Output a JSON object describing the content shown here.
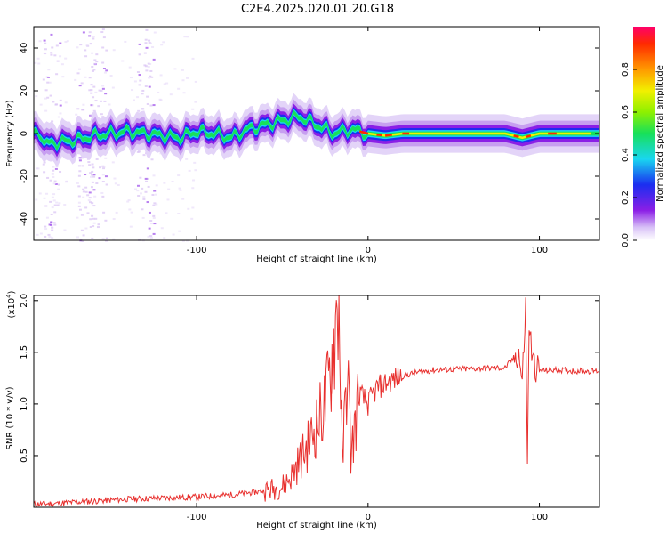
{
  "title": "C2E4.2025.020.01.20.G18",
  "chart_data": [
    {
      "type": "heatmap",
      "xlabel": "Height of straight line (km)",
      "ylabel": "Frequency (Hz)",
      "xlim": [
        -195,
        135
      ],
      "ylim": [
        -50,
        50
      ],
      "xticks": [
        -100,
        0,
        100
      ],
      "xtick_labels": [
        "-100",
        "0",
        "100"
      ],
      "yticks": [
        -40,
        -20,
        0,
        20,
        40
      ],
      "ytick_labels": [
        "-40",
        "-20",
        "0",
        "20",
        "40"
      ],
      "ridge_x": [
        -190,
        -180,
        -170,
        -160,
        -150,
        -140,
        -130,
        -120,
        -110,
        -100,
        -90,
        -80,
        -70,
        -60,
        -50,
        -40,
        -30,
        -20,
        -10,
        0,
        10,
        20,
        40,
        60,
        80,
        90,
        100,
        120,
        135
      ],
      "ridge_y": [
        -5,
        -4,
        -3,
        -1,
        0,
        1,
        0,
        -1,
        -2,
        1,
        0,
        -2,
        2,
        4,
        6,
        8,
        4,
        0,
        2,
        0,
        -1,
        0,
        0,
        0,
        0,
        -2,
        0,
        0,
        0
      ],
      "colorbar": {
        "label": "Normalized spectral amplitude",
        "range": [
          0,
          1
        ],
        "ticks": [
          0.0,
          0.2,
          0.4,
          0.6,
          0.8
        ],
        "tick_labels": [
          "0.0",
          "0.2",
          "0.4",
          "0.6",
          "0.8"
        ]
      }
    },
    {
      "type": "line",
      "xlabel": "Height of straight line (km)",
      "ylabel": "SNR (10 * v/v)",
      "scale_label": "(x10",
      "scale_exp": "4",
      "scale_close": ")",
      "xlim": [
        -195,
        135
      ],
      "ylim": [
        0,
        2.05
      ],
      "xticks": [
        -100,
        0,
        100
      ],
      "xtick_labels": [
        "-100",
        "0",
        "100"
      ],
      "yticks": [
        0.5,
        1.0,
        1.5,
        2.0
      ],
      "ytick_labels": [
        "0.5",
        "1.0",
        "1.5",
        "2.0"
      ],
      "series": [
        {
          "color": "#e8302e",
          "x": [
            -195,
            -180,
            -160,
            -140,
            -120,
            -100,
            -80,
            -70,
            -60,
            -50,
            -45,
            -40,
            -35,
            -30,
            -25,
            -22,
            -20,
            -17,
            -15,
            -12,
            -10,
            -5,
            0,
            5,
            10,
            20,
            30,
            40,
            60,
            80,
            88,
            90,
            92,
            93,
            94,
            96,
            100,
            110,
            120,
            135
          ],
          "y": [
            0.03,
            0.04,
            0.06,
            0.08,
            0.09,
            0.1,
            0.12,
            0.14,
            0.16,
            0.2,
            0.3,
            0.45,
            0.6,
            0.8,
            1.0,
            1.3,
            1.6,
            2.05,
            0.4,
            1.4,
            0.5,
            1.1,
            1.0,
            1.15,
            1.2,
            1.27,
            1.31,
            1.33,
            1.34,
            1.35,
            1.5,
            1.2,
            1.95,
            0.35,
            1.8,
            1.4,
            1.32,
            1.33,
            1.32,
            1.32
          ]
        }
      ]
    }
  ]
}
